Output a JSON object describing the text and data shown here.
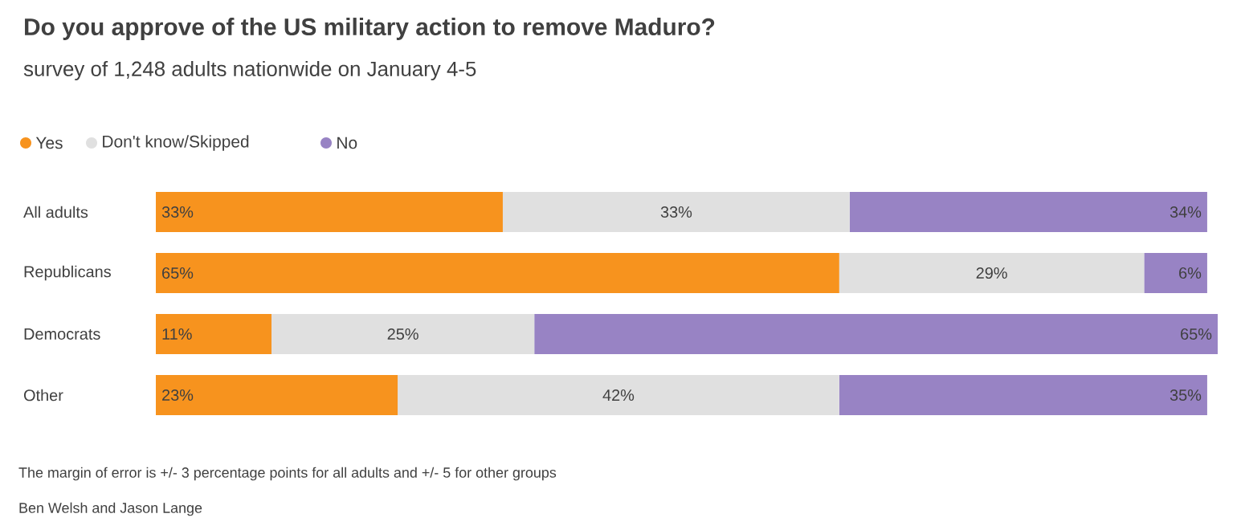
{
  "chart_data": {
    "type": "bar",
    "orientation": "horizontal",
    "stacked": true,
    "title": "Do you approve of the US military action to remove Maduro?",
    "subtitle": "survey of 1,248 adults nationwide on January 4-5",
    "categories": [
      "All adults",
      "Republicans",
      "Democrats",
      "Other"
    ],
    "series": [
      {
        "name": "Yes",
        "color": "#f7931e",
        "values": [
          33,
          65,
          11,
          23
        ],
        "value_labels": [
          "33%",
          "65%",
          "11%",
          "23%"
        ]
      },
      {
        "name": "Don't know/Skipped",
        "color": "#e0e0e0",
        "values": [
          33,
          29,
          25,
          42
        ],
        "value_labels": [
          "33%",
          "29%",
          "25%",
          "42%"
        ]
      },
      {
        "name": "No",
        "color": "#9883c4",
        "values": [
          34,
          6,
          65,
          35
        ],
        "value_labels": [
          "34%",
          "6%",
          "65%",
          "35%"
        ]
      }
    ],
    "legend": "top left",
    "annotations": [
      "The margin of error is +/- 3 percentage points for all adults and +/- 5 for other groups",
      "Ben Welsh and Jason Lange"
    ]
  }
}
